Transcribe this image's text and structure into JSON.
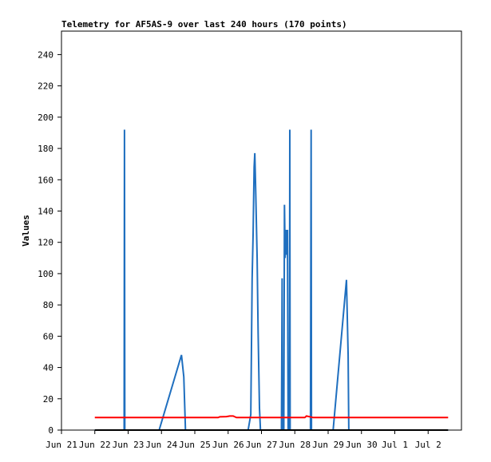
{
  "chart_data": {
    "type": "line",
    "title": "Telemetry for AF5AS-9 over last 240 hours (170 points)",
    "xlabel": "",
    "ylabel": "Values",
    "xlim": [
      0,
      12
    ],
    "ylim": [
      0,
      255
    ],
    "x_tick_labels": [
      "Jun 21",
      "Jun 22",
      "Jun 23",
      "Jun 24",
      "Jun 25",
      "Jun 26",
      "Jun 27",
      "Jun 28",
      "Jun 29",
      "Jun 30",
      "Jul 1",
      "Jul 2"
    ],
    "y_ticks": [
      0,
      20,
      40,
      60,
      80,
      100,
      120,
      140,
      160,
      180,
      200,
      220,
      240
    ],
    "grid": false,
    "colors": {
      "series_a": "#1f6fbf",
      "series_b": "#ff0000",
      "series_c": "#000000",
      "frame": "#000000"
    },
    "series": [
      {
        "color": "#1f6fbf",
        "points": [
          [
            1.0,
            0
          ],
          [
            1.88,
            0
          ],
          [
            1.89,
            192
          ],
          [
            1.9,
            0
          ],
          [
            2.93,
            0
          ],
          [
            3.6,
            48
          ],
          [
            3.67,
            34
          ],
          [
            3.72,
            0
          ],
          [
            5.6,
            0
          ],
          [
            5.68,
            10
          ],
          [
            5.72,
            97
          ],
          [
            5.75,
            126
          ],
          [
            5.78,
            168
          ],
          [
            5.8,
            177
          ],
          [
            5.83,
            150
          ],
          [
            5.87,
            110
          ],
          [
            5.9,
            62
          ],
          [
            5.94,
            14
          ],
          [
            5.97,
            0
          ],
          [
            6.6,
            0
          ],
          [
            6.62,
            97
          ],
          [
            6.63,
            0
          ],
          [
            6.67,
            0
          ],
          [
            6.69,
            144
          ],
          [
            6.71,
            110
          ],
          [
            6.73,
            128
          ],
          [
            6.76,
            112
          ],
          [
            6.78,
            128
          ],
          [
            6.8,
            0
          ],
          [
            6.84,
            0
          ],
          [
            6.85,
            192
          ],
          [
            6.86,
            0
          ],
          [
            7.47,
            0
          ],
          [
            7.48,
            97
          ],
          [
            7.49,
            192
          ],
          [
            7.5,
            0
          ],
          [
            8.15,
            0
          ],
          [
            8.55,
            96
          ],
          [
            8.6,
            48
          ],
          [
            8.62,
            0
          ],
          [
            11.6,
            0
          ]
        ]
      },
      {
        "color": "#ff0000",
        "points": [
          [
            1.0,
            8
          ],
          [
            4.7,
            8
          ],
          [
            4.75,
            8.5
          ],
          [
            4.95,
            8.6
          ],
          [
            5.05,
            9
          ],
          [
            5.15,
            9
          ],
          [
            5.25,
            8
          ],
          [
            7.3,
            8
          ],
          [
            7.35,
            9
          ],
          [
            7.45,
            8.5
          ],
          [
            7.55,
            8
          ],
          [
            11.6,
            8
          ]
        ]
      },
      {
        "color": "#000000",
        "points": [
          [
            1.0,
            0
          ],
          [
            11.6,
            0
          ]
        ]
      }
    ]
  }
}
